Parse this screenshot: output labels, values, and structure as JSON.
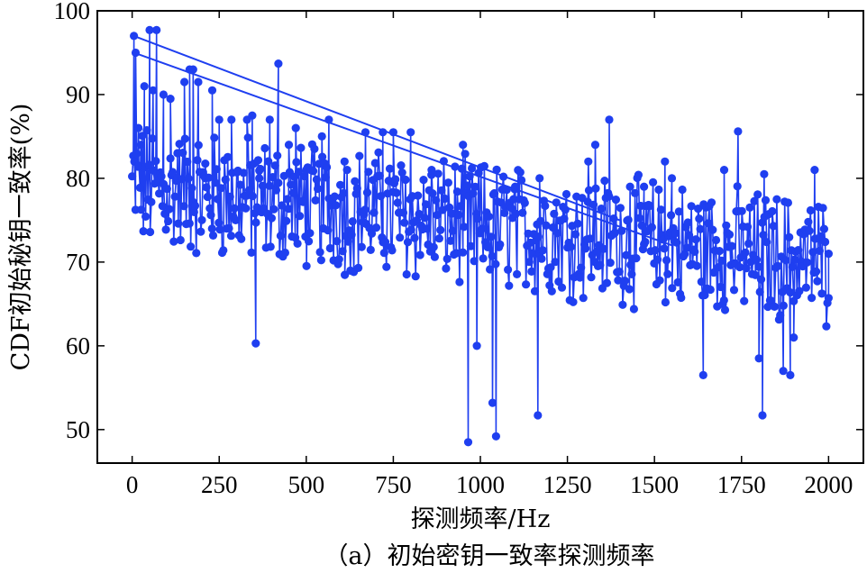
{
  "chart_data": {
    "type": "line",
    "caption": "（a）初始密钥一致率探测频率",
    "xlabel": "探测频率/Hz",
    "ylabel": "CDF初始秘钥一致率(%)",
    "xlim": [
      -100,
      2100
    ],
    "ylim": [
      46,
      100
    ],
    "xticks": [
      0,
      250,
      500,
      750,
      1000,
      1250,
      1500,
      1750,
      2000
    ],
    "yticks": [
      50,
      60,
      70,
      80,
      90,
      100
    ],
    "grid": false,
    "series_color": "#1f3ff0",
    "series": [
      {
        "marker": "circle",
        "x_start": 0,
        "x_end": 2000,
        "noise_band": [
          65,
          80
        ],
        "points": [
          [
            5,
            97
          ],
          [
            10,
            95
          ],
          [
            18,
            86
          ],
          [
            25,
            84
          ],
          [
            35,
            91
          ],
          [
            50,
            97.7
          ],
          [
            60,
            90.5
          ],
          [
            70,
            97.7
          ],
          [
            90,
            90
          ],
          [
            110,
            89.5
          ],
          [
            130,
            83
          ],
          [
            150,
            91.5
          ],
          [
            165,
            93
          ],
          [
            175,
            93
          ],
          [
            190,
            91.5
          ],
          [
            210,
            80
          ],
          [
            230,
            90.5
          ],
          [
            250,
            87
          ],
          [
            285,
            87
          ],
          [
            330,
            87
          ],
          [
            345,
            87.5
          ],
          [
            355,
            60.3
          ],
          [
            365,
            80
          ],
          [
            395,
            87
          ],
          [
            420,
            93.7
          ],
          [
            450,
            84
          ],
          [
            470,
            86
          ],
          [
            500,
            81
          ],
          [
            545,
            85
          ],
          [
            565,
            87
          ],
          [
            610,
            82
          ],
          [
            670,
            85.5
          ],
          [
            720,
            85.5
          ],
          [
            750,
            85.5
          ],
          [
            800,
            85.5
          ],
          [
            860,
            81
          ],
          [
            950,
            84
          ],
          [
            965,
            48.5
          ],
          [
            990,
            60
          ],
          [
            1035,
            53.2
          ],
          [
            1045,
            49.2
          ],
          [
            1100,
            79
          ],
          [
            1165,
            51.7
          ],
          [
            1170,
            80
          ],
          [
            1310,
            82
          ],
          [
            1330,
            84
          ],
          [
            1370,
            87
          ],
          [
            1430,
            79
          ],
          [
            1470,
            79
          ],
          [
            1530,
            82
          ],
          [
            1550,
            80
          ],
          [
            1640,
            56.5
          ],
          [
            1700,
            81
          ],
          [
            1740,
            85.6
          ],
          [
            1800,
            58.5
          ],
          [
            1810,
            51.7
          ],
          [
            1815,
            80.5
          ],
          [
            1870,
            57
          ],
          [
            1890,
            56.5
          ],
          [
            1900,
            61
          ],
          [
            1960,
            81
          ],
          [
            2000,
            71
          ]
        ],
        "trend_lines": [
          [
            [
              5,
              97
            ],
            [
              1400,
              75
            ]
          ],
          [
            [
              5,
              95
            ],
            [
              1550,
              72
            ]
          ]
        ]
      }
    ]
  }
}
